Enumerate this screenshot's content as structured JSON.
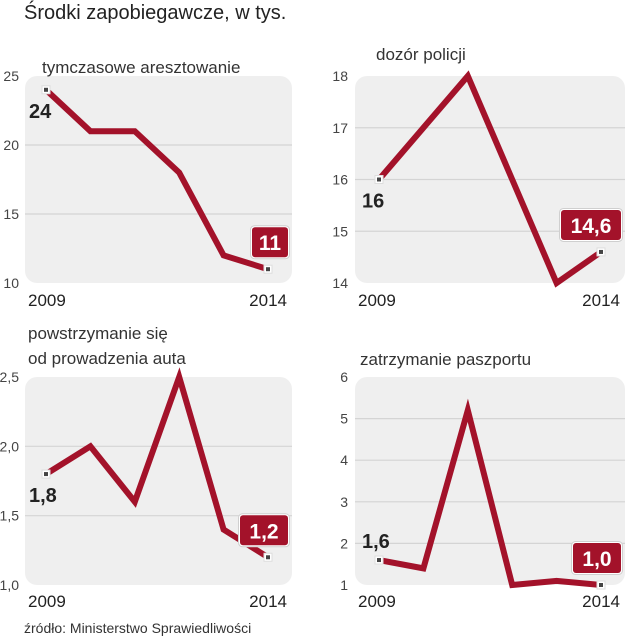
{
  "title": "Środki zapobiegawcze, w tys.",
  "source": "źródło: Ministerstwo Sprawiedliwości",
  "colors": {
    "line": "#a3122a",
    "label_box": "#a3122a",
    "panel": "#efefef",
    "grid": "#d4d4d4"
  },
  "chart_data": [
    {
      "type": "line",
      "title_lines": [
        "tymczasowe aresztowanie"
      ],
      "x": [
        2009,
        2010,
        2011,
        2012,
        2013,
        2014
      ],
      "values": [
        24,
        21,
        21,
        18,
        12,
        11
      ],
      "ylim": [
        10,
        25
      ],
      "yticks": [
        10,
        15,
        20,
        25
      ],
      "ytick_labels": [
        "10",
        "15",
        "20",
        "25"
      ],
      "x_labels": [
        "2009",
        "2014"
      ],
      "first_label": "24",
      "last_label": "11",
      "first_label_pos": "below",
      "grid": true
    },
    {
      "type": "line",
      "title_lines": [
        "dozór policji"
      ],
      "x": [
        2009,
        2010,
        2011,
        2012,
        2013,
        2014
      ],
      "values": [
        16,
        17,
        18,
        16,
        14,
        14.6
      ],
      "ylim": [
        14,
        18
      ],
      "yticks": [
        14,
        15,
        16,
        17,
        18
      ],
      "ytick_labels": [
        "14",
        "15",
        "16",
        "17",
        "18"
      ],
      "x_labels": [
        "2009",
        "2014"
      ],
      "first_label": "16",
      "last_label": "14,6",
      "first_label_pos": "below",
      "grid": true
    },
    {
      "type": "line",
      "title_lines": [
        "powstrzymanie się",
        "od prowadzenia auta"
      ],
      "x": [
        2009,
        2010,
        2011,
        2012,
        2013,
        2014
      ],
      "values": [
        1.8,
        2.0,
        1.6,
        2.5,
        1.4,
        1.2
      ],
      "ylim": [
        1.0,
        2.5
      ],
      "yticks": [
        1.0,
        1.5,
        2.0,
        2.5
      ],
      "ytick_labels": [
        "1,0",
        "1,5",
        "2,0",
        "2,5"
      ],
      "x_labels": [
        "2009",
        "2014"
      ],
      "first_label": "1,8",
      "last_label": "1,2",
      "first_label_pos": "below",
      "grid": true
    },
    {
      "type": "line",
      "title_lines": [
        "zatrzymanie paszportu"
      ],
      "x": [
        2009,
        2010,
        2011,
        2012,
        2013,
        2014
      ],
      "values": [
        1.6,
        1.4,
        5.2,
        1.0,
        1.1,
        1.0
      ],
      "ylim": [
        1,
        6
      ],
      "yticks": [
        1,
        2,
        3,
        4,
        5,
        6
      ],
      "ytick_labels": [
        "1",
        "2",
        "3",
        "4",
        "5",
        "6"
      ],
      "x_labels": [
        "2009",
        "2014"
      ],
      "first_label": "1,6",
      "last_label": "1,0",
      "first_label_pos": "above",
      "grid": true
    }
  ]
}
